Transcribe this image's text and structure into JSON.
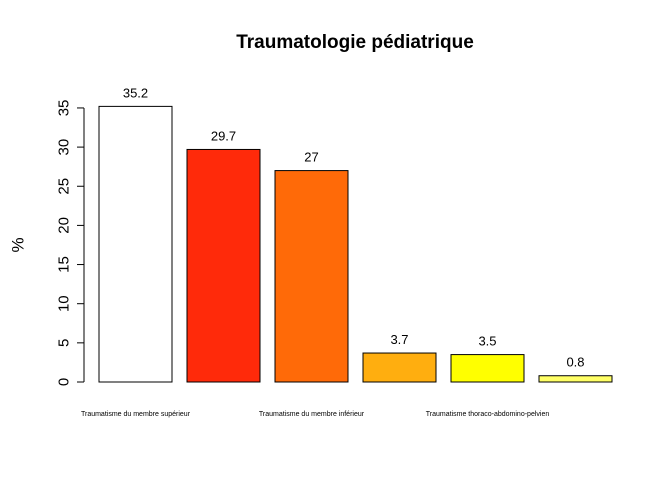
{
  "chart_data": {
    "type": "bar",
    "title": "Traumatologie pédiatrique",
    "ylabel": "%",
    "xlabel": "",
    "ylim": [
      0,
      35
    ],
    "yticks": [
      0,
      5,
      10,
      15,
      20,
      25,
      30,
      35
    ],
    "categories": [
      "Traumatisme du membre supérieur",
      "",
      "Traumatisme du membre inférieur",
      "",
      "Traumatisme thoraco-abdomino-pelvien",
      ""
    ],
    "values": [
      35.2,
      29.7,
      27,
      3.7,
      3.5,
      0.8
    ],
    "value_labels": [
      "35.2",
      "29.7",
      "27",
      "3.7",
      "3.5",
      "0.8"
    ],
    "colors": [
      "#FFFFFF",
      "#FF2A0A",
      "#FF6A08",
      "#FFAE0F",
      "#FFFF00",
      "#FFFF66"
    ],
    "grid": false,
    "legend": "none"
  }
}
